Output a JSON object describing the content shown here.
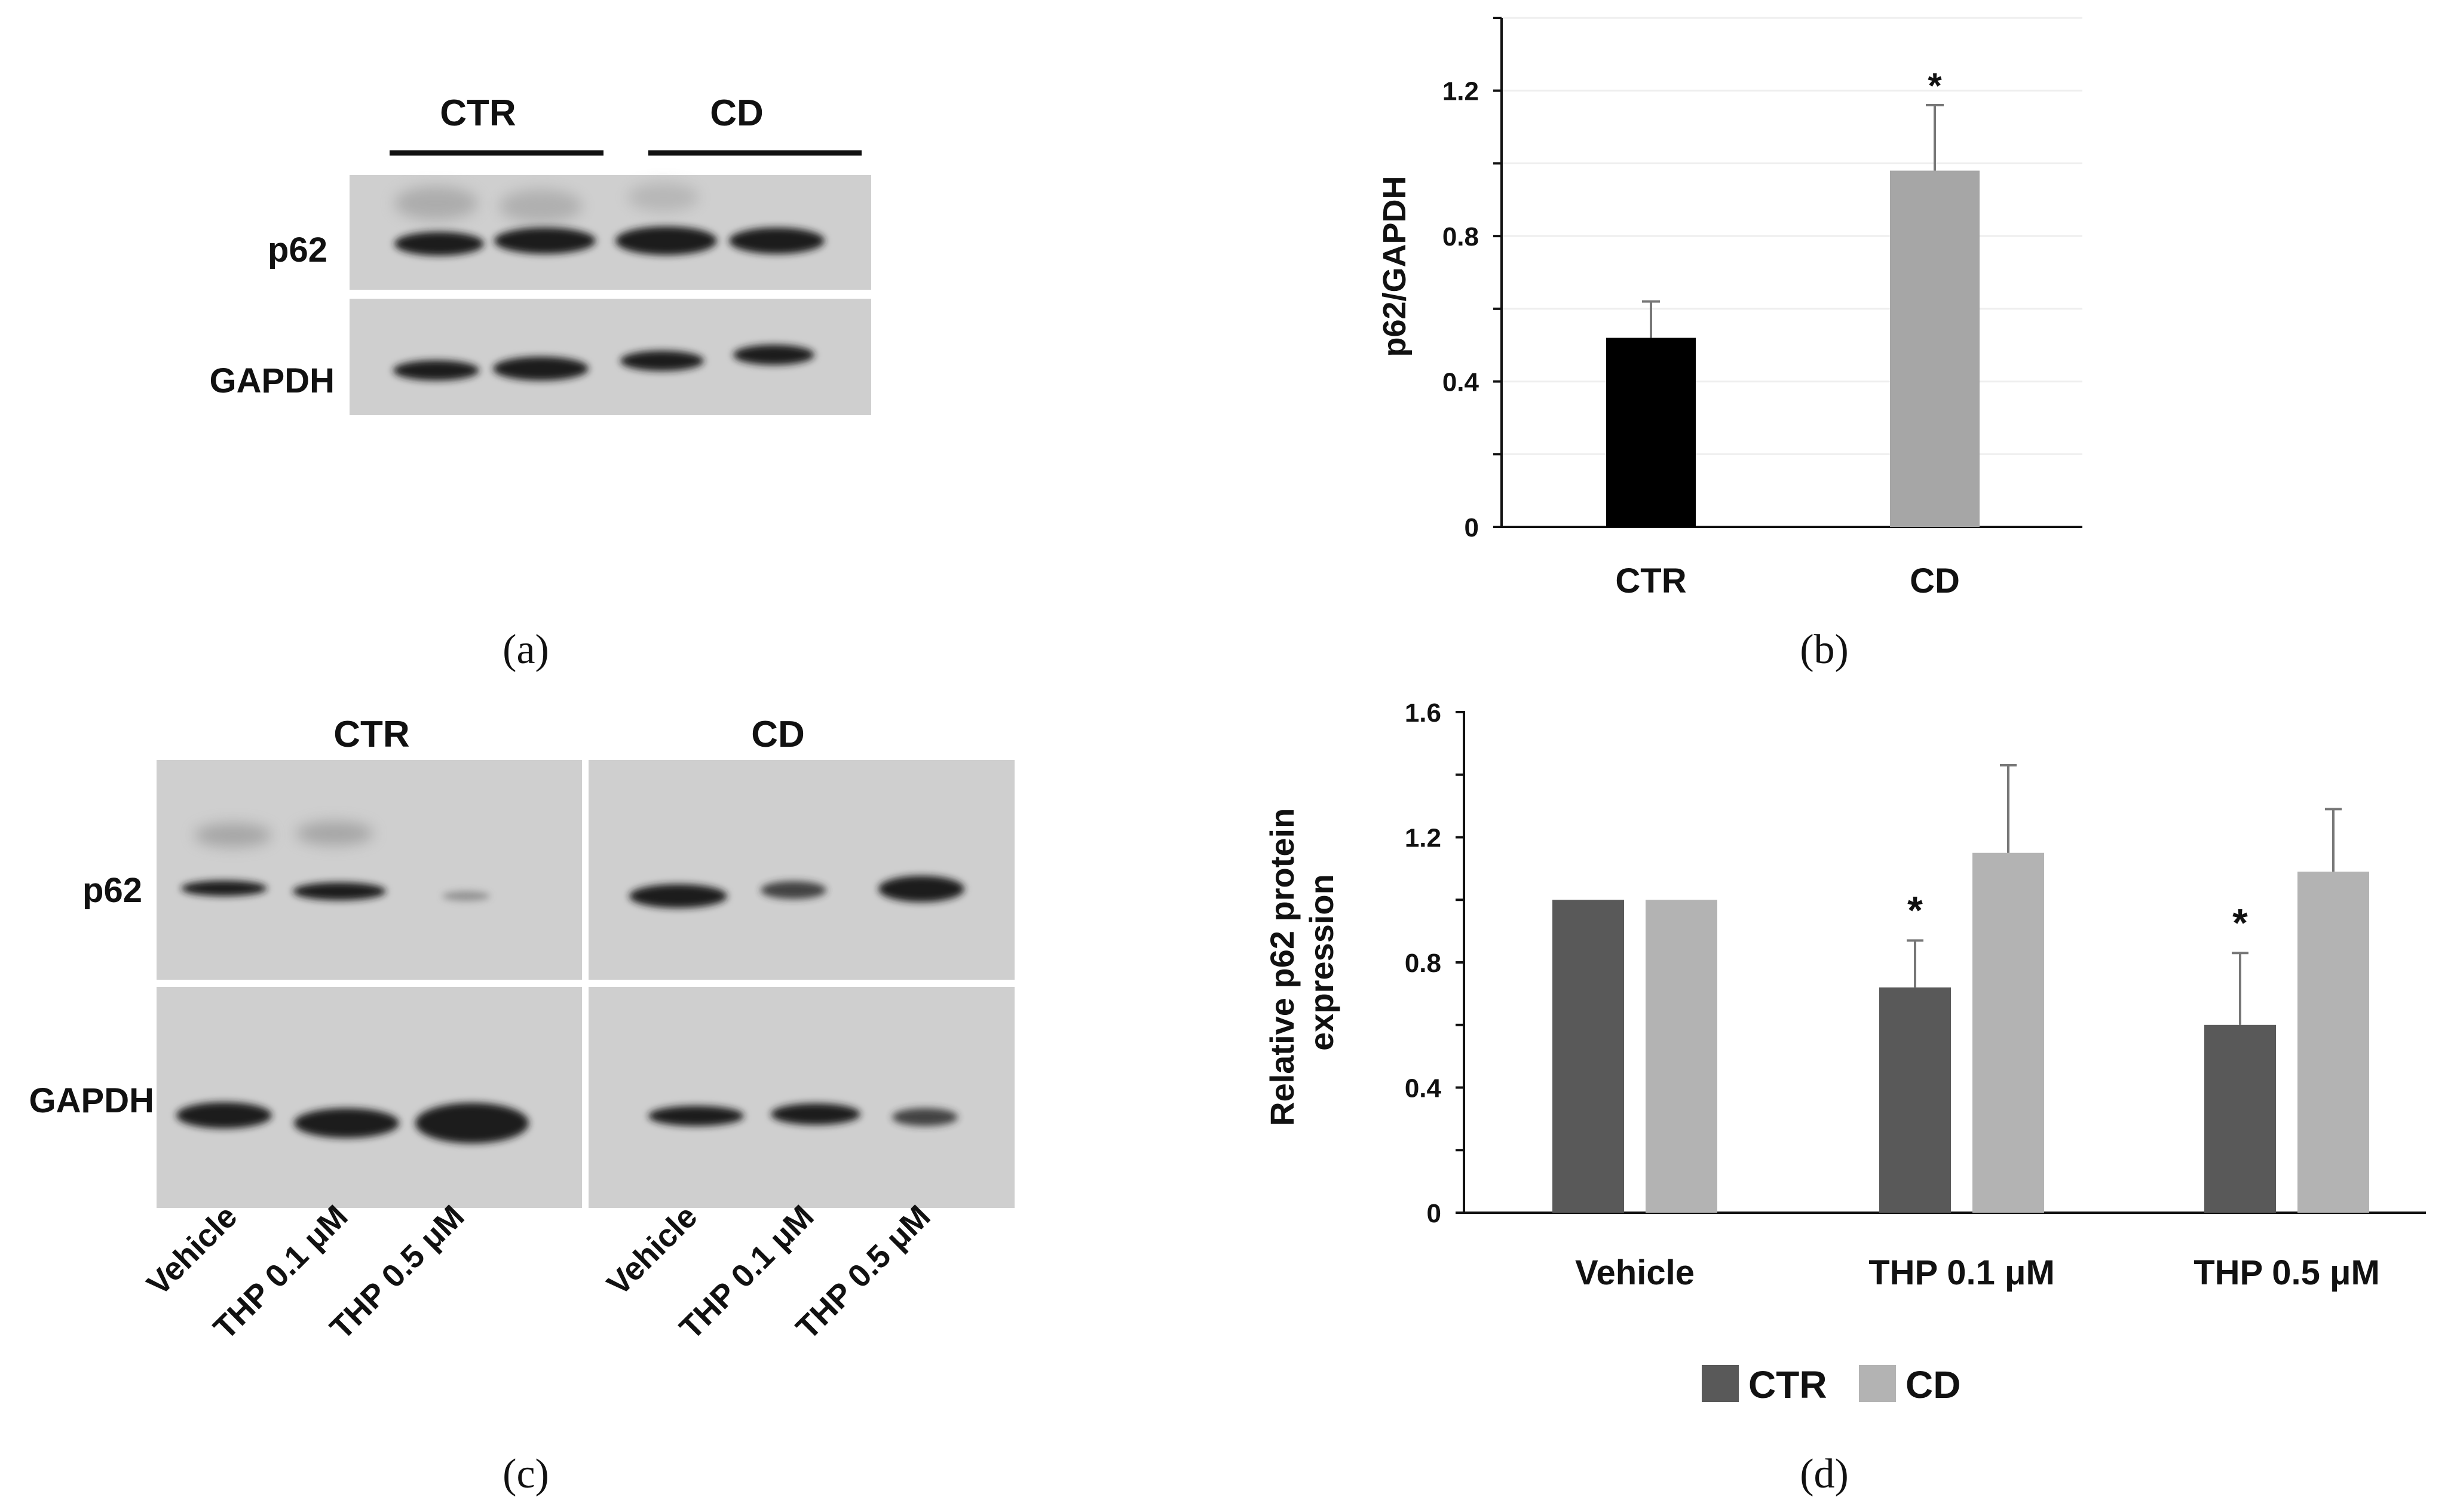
{
  "panels": {
    "a": {
      "caption": "(a)",
      "groups": [
        "CTR",
        "CD"
      ],
      "bands": [
        "p62",
        "GAPDH"
      ]
    },
    "b": {
      "caption": "(b)"
    },
    "c": {
      "caption": "(c)",
      "groups": [
        "CTR",
        "CD"
      ],
      "bands": [
        "p62",
        "GAPDH"
      ],
      "lanes": [
        "Vehicle",
        "THP 0.1 μM",
        "THP 0.5 μM"
      ]
    },
    "d": {
      "caption": "(d)"
    }
  },
  "colors": {
    "b_ctr": "#000000",
    "b_cd": "#a6a6a6",
    "d_ctr": "#595959",
    "d_cd": "#b3b3b3",
    "blot_bg": "#cfcfcf",
    "band": "#1a1a1a"
  },
  "chart_data": [
    {
      "panel": "b",
      "type": "bar",
      "categories": [
        "CTR",
        "CD"
      ],
      "values": [
        0.52,
        0.98
      ],
      "errors": [
        0.1,
        0.18
      ],
      "significance": [
        "",
        "*"
      ],
      "ylabel": "p62/GAPDH",
      "xlabel": "",
      "ylim": [
        0,
        1.4
      ],
      "yticks": [
        "0",
        "0.4",
        "0.8",
        "1.2"
      ],
      "ytick_values": [
        0,
        0.4,
        0.8,
        1.2
      ],
      "grid": true
    },
    {
      "panel": "d",
      "type": "bar",
      "categories": [
        "Vehicle",
        "THP 0.1 μM",
        "THP 0.5 μM"
      ],
      "series": [
        {
          "name": "CTR",
          "values": [
            1.0,
            0.72,
            0.6
          ],
          "errors": [
            0,
            0.15,
            0.23
          ],
          "significance": [
            "",
            "*",
            "*"
          ]
        },
        {
          "name": "CD",
          "values": [
            1.0,
            1.15,
            1.09
          ],
          "errors": [
            0,
            0.28,
            0.2
          ],
          "significance": [
            "",
            "",
            ""
          ]
        }
      ],
      "ylabel": "Relative p62 protein expression",
      "ylabel_lines": [
        "Relative p62 protein",
        "expression"
      ],
      "xlabel": "",
      "ylim": [
        0,
        1.6
      ],
      "yticks": [
        "0",
        "0.4",
        "0.8",
        "1.2",
        "1.6"
      ],
      "ytick_values": [
        0,
        0.4,
        0.8,
        1.2,
        1.6
      ],
      "legend": "bottom",
      "grid": false
    }
  ]
}
